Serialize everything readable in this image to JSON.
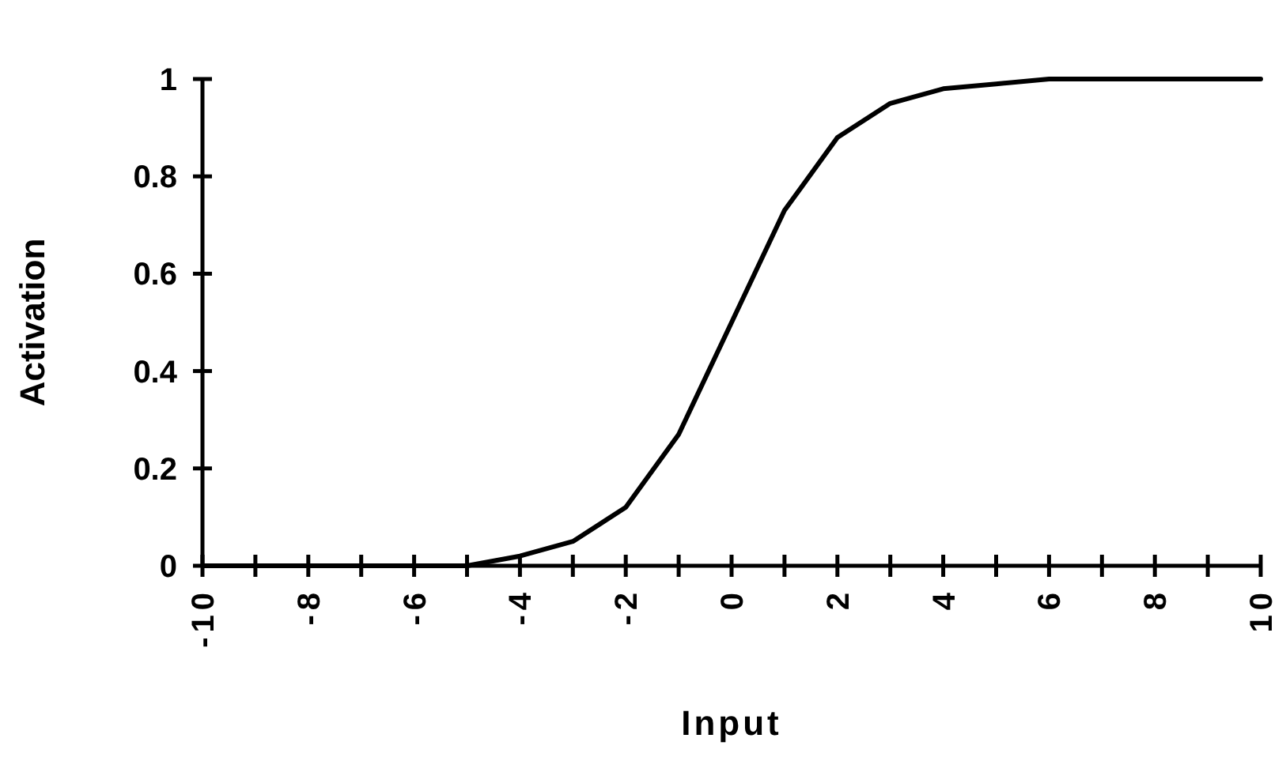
{
  "chart_data": {
    "type": "line",
    "xlabel": "Input",
    "ylabel": "Activation",
    "x": [
      -10,
      -9,
      -8,
      -7,
      -6,
      -5,
      -4,
      -3,
      -2,
      -1,
      0,
      1,
      2,
      3,
      4,
      5,
      6,
      7,
      8,
      9,
      10
    ],
    "series": [
      {
        "color": "#000000",
        "values": [
          0,
          0,
          0,
          0,
          0,
          0,
          0.02,
          0.05,
          0.12,
          0.27,
          0.5,
          0.73,
          0.88,
          0.95,
          0.98,
          0.99,
          1,
          1,
          1,
          1,
          1
        ]
      }
    ],
    "xlim": [
      -10,
      10
    ],
    "xticks": [
      -10,
      {
        "value": -9,
        "label": null
      },
      -8,
      {
        "value": -7,
        "label": null
      },
      -6,
      {
        "value": -5,
        "label": null
      },
      -4,
      {
        "value": -3,
        "label": null
      },
      -2,
      {
        "value": -1,
        "label": null
      },
      0,
      {
        "value": 1,
        "label": null
      },
      2,
      {
        "value": 3,
        "label": null
      },
      4,
      {
        "value": 5,
        "label": null
      },
      6,
      {
        "value": 7,
        "label": null
      },
      8,
      {
        "value": 9,
        "label": null
      },
      10
    ],
    "ylim": [
      0,
      1
    ],
    "yticks": [
      0,
      0.2,
      0.4,
      0.6,
      0.8,
      1
    ],
    "grid": false,
    "marker": "none",
    "line_style": "solid"
  }
}
